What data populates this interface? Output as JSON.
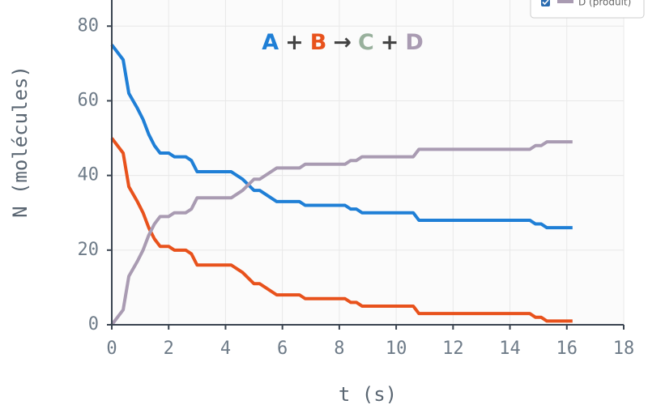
{
  "chart_data": {
    "type": "line",
    "title_parts": [
      {
        "text": "A",
        "color": "#1f7fd6"
      },
      {
        "text": "+",
        "color": "#444444"
      },
      {
        "text": "B",
        "color": "#e8521c"
      },
      {
        "text": "→",
        "color": "#444444"
      },
      {
        "text": "C",
        "color": "#98b09c"
      },
      {
        "text": "+",
        "color": "#444444"
      },
      {
        "text": "D",
        "color": "#a99bb2"
      }
    ],
    "x_label": "t (s)",
    "y_label": "N (molécules)",
    "x": [
      0,
      0.4,
      0.6,
      0.9,
      1.1,
      1.3,
      1.5,
      1.7,
      2.0,
      2.2,
      2.6,
      2.8,
      3.0,
      4.2,
      4.6,
      5.0,
      5.2,
      5.8,
      6.6,
      6.8,
      8.2,
      8.4,
      8.6,
      8.8,
      10.6,
      10.8,
      14.7,
      14.9,
      15.1,
      15.3,
      16.2
    ],
    "series": [
      {
        "color": "#1f7fd6",
        "values": [
          75,
          71,
          62,
          58,
          55,
          51,
          48,
          46,
          46,
          45,
          45,
          44,
          41,
          41,
          39,
          36,
          36,
          33,
          33,
          32,
          32,
          31,
          31,
          30,
          30,
          28,
          28,
          27,
          27,
          26,
          26
        ]
      },
      {
        "color": "#e8521c",
        "values": [
          50,
          46,
          37,
          33,
          30,
          26,
          23,
          21,
          21,
          20,
          20,
          19,
          16,
          16,
          14,
          11,
          11,
          8,
          8,
          7,
          7,
          6,
          6,
          5,
          5,
          3,
          3,
          2,
          2,
          1,
          1
        ]
      },
      {
        "name": "D (produit)",
        "color": "#a99bb2",
        "values": [
          0,
          4,
          13,
          17,
          20,
          24,
          27,
          29,
          29,
          30,
          30,
          31,
          34,
          34,
          36,
          39,
          39,
          42,
          42,
          43,
          43,
          44,
          44,
          45,
          45,
          47,
          47,
          48,
          48,
          49,
          49
        ]
      }
    ],
    "xlim": [
      0,
      18
    ],
    "xticks": [
      0,
      2,
      4,
      6,
      8,
      10,
      12,
      14,
      16,
      18
    ],
    "ylim": [
      0,
      87
    ],
    "yticks": [
      0,
      20,
      40,
      60,
      80
    ],
    "grid": true
  }
}
